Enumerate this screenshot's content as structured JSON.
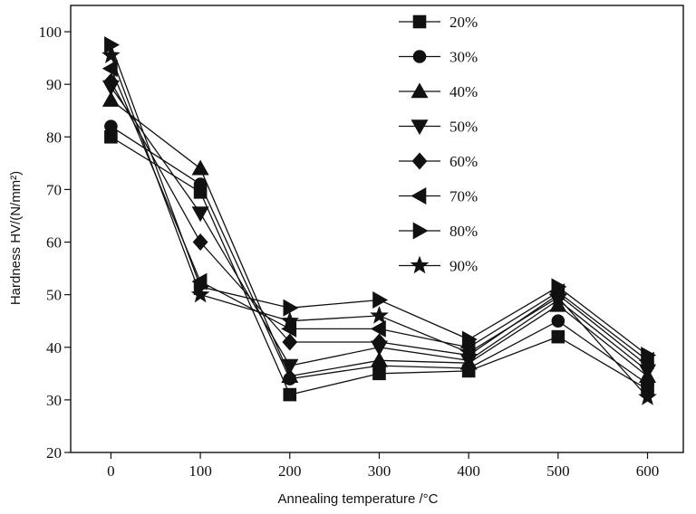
{
  "chart_data": {
    "type": "line",
    "title": "",
    "xlabel": "Annealing temperature /°C",
    "ylabel": "Hardness HV/(N/mm²)",
    "x": [
      0,
      100,
      200,
      300,
      400,
      500,
      600
    ],
    "xlim": [
      -45,
      640
    ],
    "ylim": [
      20,
      105
    ],
    "xticks": [
      "0",
      "100",
      "200",
      "300",
      "400",
      "500",
      "600"
    ],
    "yticks": [
      "20",
      "30",
      "40",
      "50",
      "60",
      "70",
      "80",
      "90",
      "100"
    ],
    "legend_position": "top-right",
    "series": [
      {
        "name": "20%",
        "marker": "square",
        "values": [
          80,
          69.5,
          31,
          35,
          35.5,
          42,
          32
        ]
      },
      {
        "name": "30%",
        "marker": "circle",
        "values": [
          82,
          71,
          34,
          36.5,
          36,
          45,
          33
        ]
      },
      {
        "name": "40%",
        "marker": "triangle-up",
        "values": [
          87,
          74,
          34.5,
          37.5,
          37,
          48,
          34.5
        ]
      },
      {
        "name": "50%",
        "marker": "triangle-down",
        "values": [
          89.5,
          65.5,
          36.5,
          40,
          37.5,
          49,
          35.5
        ]
      },
      {
        "name": "60%",
        "marker": "diamond",
        "values": [
          90.5,
          60,
          41,
          41,
          38.5,
          50,
          36.5
        ]
      },
      {
        "name": "70%",
        "marker": "triangle-left",
        "values": [
          93,
          52.5,
          43.5,
          43.5,
          40,
          50.5,
          37.5
        ]
      },
      {
        "name": "80%",
        "marker": "triangle-right",
        "values": [
          97.5,
          51.5,
          47.5,
          49,
          41.5,
          51.5,
          38.5
        ]
      },
      {
        "name": "90%",
        "marker": "star",
        "values": [
          95.5,
          50,
          45,
          46,
          39,
          49.5,
          30.5
        ]
      }
    ]
  }
}
